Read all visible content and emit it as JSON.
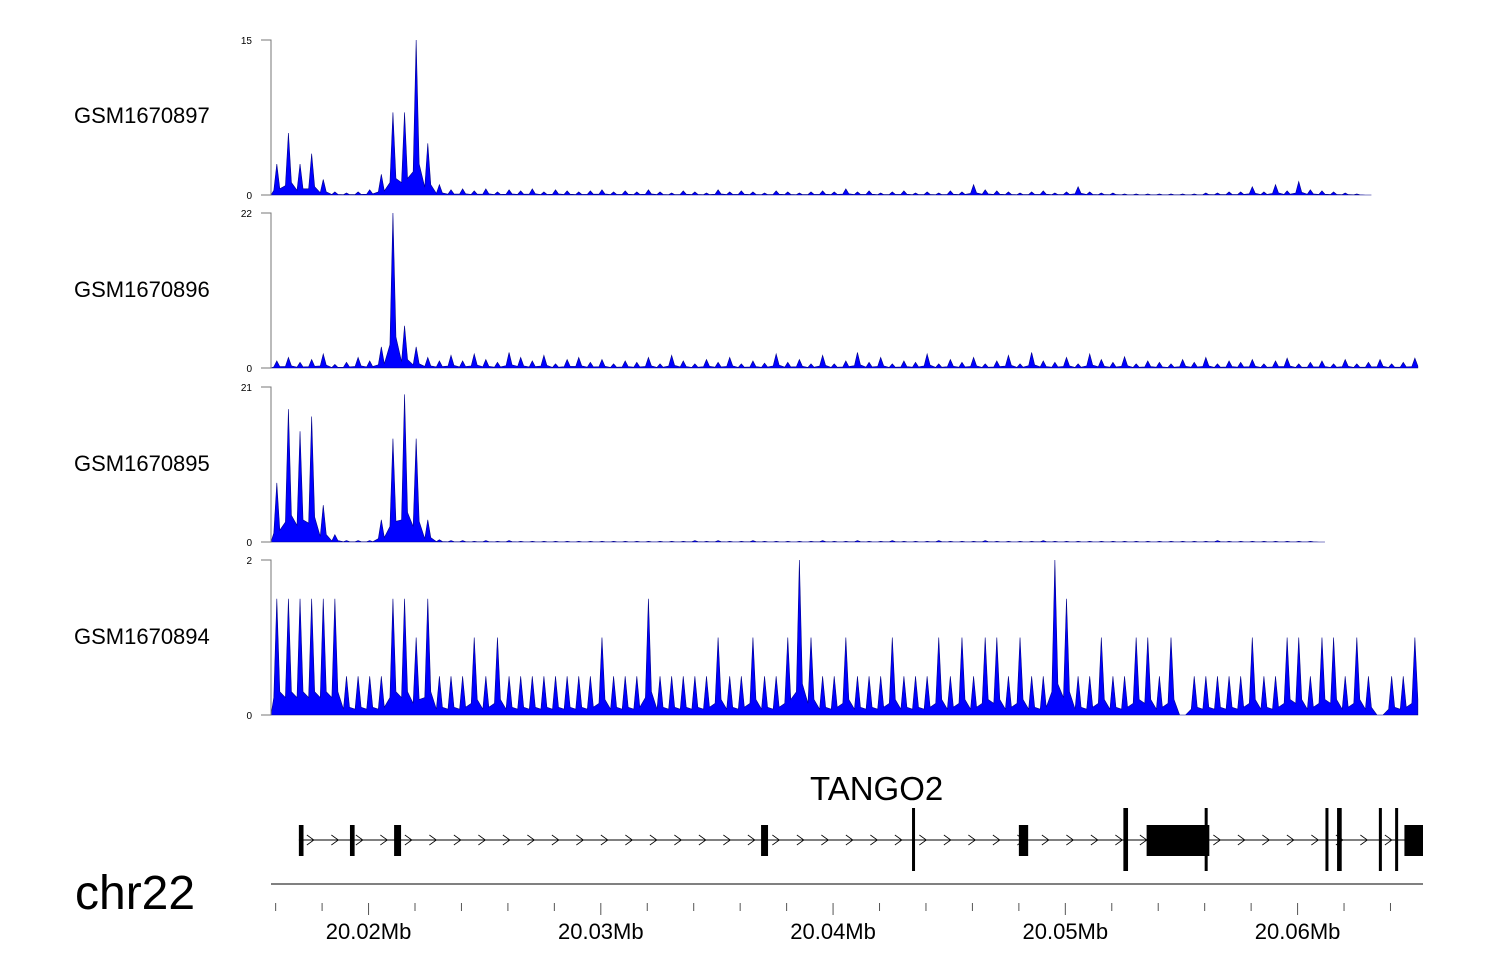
{
  "chart_data": {
    "type": "area",
    "title": "",
    "chromosome": "chr22",
    "xlim_kb": [
      20015.8,
      20065.4
    ],
    "x_ticks_kb_step": 2,
    "x_labels": [
      {
        "kb": 20020,
        "label": "20.02Mb"
      },
      {
        "kb": 20030,
        "label": "20.03Mb"
      },
      {
        "kb": 20040,
        "label": "20.04Mb"
      },
      {
        "kb": 20050,
        "label": "20.05Mb"
      },
      {
        "kb": 20060,
        "label": "20.06Mb"
      }
    ],
    "bin_kb": 0.5,
    "tracks": [
      {
        "name": "GSM1670897",
        "ymax": 15,
        "ymin_label": "0",
        "ymax_label": "15",
        "color": "#0000FF",
        "values": [
          3,
          6,
          3,
          4,
          1.5,
          0.3,
          0.2,
          0.3,
          0.5,
          2,
          8,
          8,
          15,
          5,
          1,
          0.5,
          0.6,
          0.4,
          0.6,
          0.3,
          0.5,
          0.4,
          0.6,
          0.3,
          0.5,
          0.4,
          0.3,
          0.4,
          0.5,
          0.3,
          0.4,
          0.3,
          0.5,
          0.3,
          0.2,
          0.4,
          0.3,
          0.2,
          0.5,
          0.3,
          0.4,
          0.3,
          0.2,
          0.4,
          0.3,
          0.2,
          0.3,
          0.4,
          0.3,
          0.6,
          0.3,
          0.4,
          0.2,
          0.3,
          0.4,
          0.2,
          0.3,
          0.2,
          0.4,
          0.3,
          1,
          0.5,
          0.4,
          0.3,
          0.2,
          0.3,
          0.4,
          0.2,
          0.3,
          0.8,
          0.3,
          0.2,
          0.2,
          0.1,
          0.1,
          0.1,
          0.1,
          0.1,
          0.1,
          0.1,
          0.2,
          0.2,
          0.3,
          0.3,
          0.8,
          0.3,
          1,
          0.4,
          1.3,
          0.5,
          0.4,
          0.3,
          0.2,
          0.1,
          0
        ]
      },
      {
        "name": "GSM1670896",
        "ymax": 22,
        "ymin_label": "0",
        "ymax_label": "22",
        "color": "#0000FF",
        "values": [
          1,
          1.5,
          0.8,
          1.2,
          2,
          0.5,
          0.8,
          1.5,
          1,
          3,
          22,
          6,
          3,
          1.5,
          1,
          1.8,
          1,
          2,
          1.2,
          0.8,
          2.2,
          1.5,
          1,
          1.8,
          0.6,
          1.2,
          1.5,
          0.8,
          1.2,
          0.6,
          1,
          0.8,
          1.5,
          0.6,
          1.8,
          1,
          0.6,
          1.2,
          0.8,
          1.5,
          0.6,
          1,
          0.7,
          2,
          0.8,
          1.2,
          0.6,
          1.8,
          0.6,
          1,
          2.2,
          0.8,
          1.5,
          0.6,
          1,
          0.8,
          2,
          0.6,
          1.2,
          0.8,
          1.5,
          0.6,
          1,
          1.8,
          0.6,
          2.2,
          1,
          0.8,
          1.5,
          0.6,
          2,
          1.2,
          0.8,
          1.6,
          0.6,
          1,
          0.8,
          0.6,
          1.2,
          0.8,
          1.5,
          0.6,
          1,
          0.8,
          1.2,
          0.6,
          1,
          1.4,
          0.6,
          0.8,
          1,
          0.6,
          1.2,
          0.6,
          0.8,
          1.2,
          0.6,
          0.8,
          1.4,
          0.5
        ]
      },
      {
        "name": "GSM1670895",
        "ymax": 21,
        "ymin_label": "0",
        "ymax_label": "21",
        "color": "#0000FF",
        "values": [
          8,
          18,
          15,
          17,
          5,
          1,
          0.2,
          0.2,
          0.2,
          3,
          14,
          20,
          14,
          3,
          0.3,
          0.2,
          0.2,
          0.1,
          0.2,
          0.1,
          0.2,
          0.1,
          0.1,
          0.1,
          0.1,
          0.1,
          0.1,
          0.1,
          0.1,
          0.1,
          0.1,
          0.1,
          0.1,
          0.1,
          0.1,
          0.1,
          0.2,
          0.1,
          0.2,
          0.1,
          0.1,
          0.2,
          0.1,
          0.1,
          0.1,
          0.1,
          0.1,
          0.2,
          0.1,
          0.1,
          0.2,
          0.1,
          0.1,
          0.2,
          0.1,
          0.1,
          0.1,
          0.2,
          0.1,
          0.1,
          0.1,
          0.2,
          0.1,
          0.1,
          0.1,
          0.1,
          0.2,
          0.1,
          0.1,
          0.1,
          0.1,
          0.1,
          0.1,
          0.1,
          0.1,
          0.1,
          0.1,
          0.1,
          0.1,
          0.1,
          0.1,
          0.2,
          0.1,
          0.1,
          0.1,
          0.1,
          0.1,
          0.1,
          0.1,
          0.1,
          0
        ]
      },
      {
        "name": "GSM1670894",
        "ymax": 2,
        "ymin_label": "0",
        "ymax_label": "2",
        "color": "#0000FF",
        "values": [
          1.5,
          1.5,
          1.5,
          1.5,
          1.5,
          1.5,
          0.5,
          0.5,
          0.5,
          0.5,
          1.5,
          1.5,
          1,
          1.5,
          0.5,
          0.5,
          0.5,
          1,
          0.5,
          1,
          0.5,
          0.5,
          0.5,
          0.5,
          0.5,
          0.5,
          0.5,
          0.5,
          1,
          0.5,
          0.5,
          0.5,
          1.5,
          0.5,
          0.5,
          0.5,
          0.5,
          0.5,
          1,
          0.5,
          0.5,
          1,
          0.5,
          0.5,
          1,
          2,
          1,
          0.5,
          0.5,
          1,
          0.5,
          0.5,
          0.5,
          1,
          0.5,
          0.5,
          0.5,
          1,
          0.5,
          1,
          0.5,
          1,
          1,
          0.5,
          1,
          0.5,
          0.5,
          2,
          1.5,
          0.5,
          0.5,
          1,
          0.5,
          0.5,
          1,
          1,
          0.5,
          1,
          0,
          0.5,
          0.5,
          0.5,
          0.5,
          0.5,
          1,
          0.5,
          0.5,
          1,
          1,
          0.5,
          1,
          1,
          0.5,
          1,
          0.5,
          0,
          0.5,
          0.5,
          1
        ]
      }
    ],
    "gene": {
      "name": "TANGO2",
      "strand": "+",
      "start_kb": 20017.0,
      "end_kb": 20065.4,
      "exons_kb": [
        [
          20017.0,
          20017.2
        ],
        [
          20019.2,
          20019.4
        ],
        [
          20021.1,
          20021.4
        ],
        [
          20036.9,
          20037.2
        ],
        [
          20043.4,
          20043.5
        ],
        [
          20048.0,
          20048.4
        ],
        [
          20052.5,
          20052.7
        ],
        [
          20053.5,
          20056.2
        ],
        [
          20056.0,
          20056.1
        ],
        [
          20061.2,
          20061.3
        ],
        [
          20061.7,
          20061.9
        ],
        [
          20063.5,
          20063.6
        ],
        [
          20064.2,
          20064.3
        ],
        [
          20064.6,
          20065.4
        ]
      ]
    }
  }
}
